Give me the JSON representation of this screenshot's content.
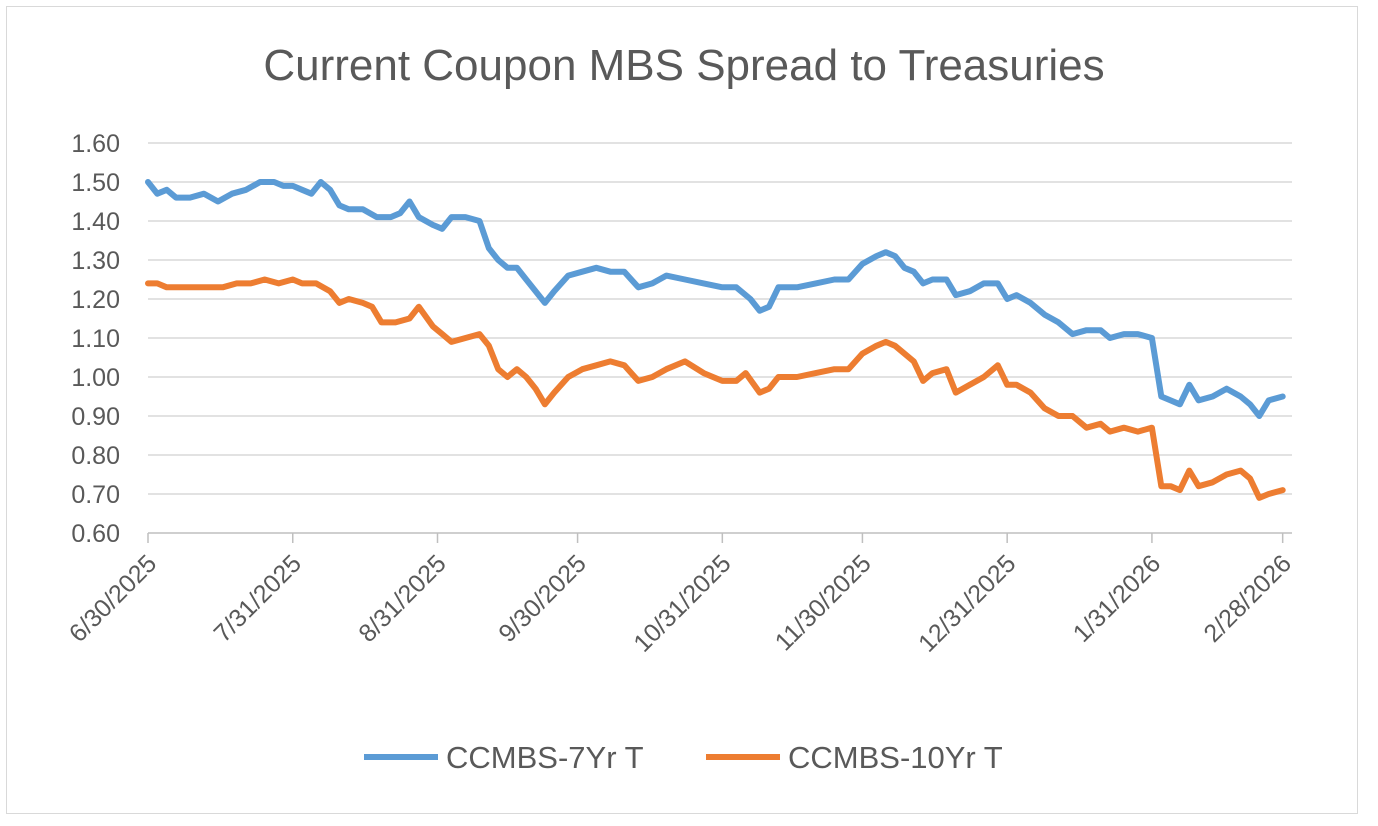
{
  "chart_data": {
    "type": "line",
    "title": "Current Coupon MBS Spread to Treasuries",
    "xlabel": "",
    "ylabel": "",
    "ylim": [
      0.6,
      1.6
    ],
    "y_ticks": [
      "0.60",
      "0.70",
      "0.80",
      "0.90",
      "1.00",
      "1.10",
      "1.20",
      "1.30",
      "1.40",
      "1.50",
      "1.60"
    ],
    "x_range": [
      "6/30/2025",
      "3/2/2026"
    ],
    "x_ticks": [
      "6/30/2025",
      "7/31/2025",
      "8/31/2025",
      "9/30/2025",
      "10/31/2025",
      "11/30/2025",
      "12/31/2025",
      "1/31/2026",
      "2/28/2026"
    ],
    "grid": "horizontal",
    "legend_position": "bottom",
    "series": [
      {
        "name": "CCMBS-7Yr T",
        "color": "#5b9bd5",
        "points": [
          [
            "6/30/2025",
            1.5
          ],
          [
            "7/2/2025",
            1.47
          ],
          [
            "7/4/2025",
            1.48
          ],
          [
            "7/6/2025",
            1.46
          ],
          [
            "7/9/2025",
            1.46
          ],
          [
            "7/12/2025",
            1.47
          ],
          [
            "7/15/2025",
            1.45
          ],
          [
            "7/18/2025",
            1.47
          ],
          [
            "7/21/2025",
            1.48
          ],
          [
            "7/24/2025",
            1.5
          ],
          [
            "7/27/2025",
            1.5
          ],
          [
            "7/29/2025",
            1.49
          ],
          [
            "7/31/2025",
            1.49
          ],
          [
            "8/2/2025",
            1.48
          ],
          [
            "8/4/2025",
            1.47
          ],
          [
            "8/6/2025",
            1.5
          ],
          [
            "8/8/2025",
            1.48
          ],
          [
            "8/10/2025",
            1.44
          ],
          [
            "8/12/2025",
            1.43
          ],
          [
            "8/15/2025",
            1.43
          ],
          [
            "8/18/2025",
            1.41
          ],
          [
            "8/21/2025",
            1.41
          ],
          [
            "8/23/2025",
            1.42
          ],
          [
            "8/25/2025",
            1.45
          ],
          [
            "8/27/2025",
            1.41
          ],
          [
            "8/30/2025",
            1.39
          ],
          [
            "9/1/2025",
            1.38
          ],
          [
            "9/3/2025",
            1.41
          ],
          [
            "9/6/2025",
            1.41
          ],
          [
            "9/9/2025",
            1.4
          ],
          [
            "9/11/2025",
            1.33
          ],
          [
            "9/13/2025",
            1.3
          ],
          [
            "9/15/2025",
            1.28
          ],
          [
            "9/17/2025",
            1.28
          ],
          [
            "9/19/2025",
            1.25
          ],
          [
            "9/21/2025",
            1.22
          ],
          [
            "9/23/2025",
            1.19
          ],
          [
            "9/25/2025",
            1.22
          ],
          [
            "9/28/2025",
            1.26
          ],
          [
            "10/1/2025",
            1.27
          ],
          [
            "10/4/2025",
            1.28
          ],
          [
            "10/7/2025",
            1.27
          ],
          [
            "10/10/2025",
            1.27
          ],
          [
            "10/13/2025",
            1.23
          ],
          [
            "10/16/2025",
            1.24
          ],
          [
            "10/19/2025",
            1.26
          ],
          [
            "10/23/2025",
            1.25
          ],
          [
            "10/27/2025",
            1.24
          ],
          [
            "10/31/2025",
            1.23
          ],
          [
            "11/3/2025",
            1.23
          ],
          [
            "11/6/2025",
            1.2
          ],
          [
            "11/8/2025",
            1.17
          ],
          [
            "11/10/2025",
            1.18
          ],
          [
            "11/12/2025",
            1.23
          ],
          [
            "11/16/2025",
            1.23
          ],
          [
            "11/20/2025",
            1.24
          ],
          [
            "11/24/2025",
            1.25
          ],
          [
            "11/27/2025",
            1.25
          ],
          [
            "11/30/2025",
            1.29
          ],
          [
            "12/3/2025",
            1.31
          ],
          [
            "12/5/2025",
            1.32
          ],
          [
            "12/7/2025",
            1.31
          ],
          [
            "12/9/2025",
            1.28
          ],
          [
            "12/11/2025",
            1.27
          ],
          [
            "12/13/2025",
            1.24
          ],
          [
            "12/15/2025",
            1.25
          ],
          [
            "12/18/2025",
            1.25
          ],
          [
            "12/20/2025",
            1.21
          ],
          [
            "12/23/2025",
            1.22
          ],
          [
            "12/26/2025",
            1.24
          ],
          [
            "12/29/2025",
            1.24
          ],
          [
            "12/31/2025",
            1.2
          ],
          [
            "1/2/2026",
            1.21
          ],
          [
            "1/5/2026",
            1.19
          ],
          [
            "1/8/2026",
            1.16
          ],
          [
            "1/11/2026",
            1.14
          ],
          [
            "1/14/2026",
            1.11
          ],
          [
            "1/17/2026",
            1.12
          ],
          [
            "1/20/2026",
            1.12
          ],
          [
            "1/22/2026",
            1.1
          ],
          [
            "1/25/2026",
            1.11
          ],
          [
            "1/28/2026",
            1.11
          ],
          [
            "1/31/2026",
            1.1
          ],
          [
            "2/2/2026",
            0.95
          ],
          [
            "2/4/2026",
            0.94
          ],
          [
            "2/6/2026",
            0.93
          ],
          [
            "2/8/2026",
            0.98
          ],
          [
            "2/10/2026",
            0.94
          ],
          [
            "2/13/2026",
            0.95
          ],
          [
            "2/16/2026",
            0.97
          ],
          [
            "2/19/2026",
            0.95
          ],
          [
            "2/21/2026",
            0.93
          ],
          [
            "2/23/2026",
            0.9
          ],
          [
            "2/25/2026",
            0.94
          ],
          [
            "2/28/2026",
            0.95
          ]
        ]
      },
      {
        "name": "CCMBS-10Yr T",
        "color": "#ed7d31",
        "points": [
          [
            "6/30/2025",
            1.24
          ],
          [
            "7/2/2025",
            1.24
          ],
          [
            "7/4/2025",
            1.23
          ],
          [
            "7/8/2025",
            1.23
          ],
          [
            "7/12/2025",
            1.23
          ],
          [
            "7/16/2025",
            1.23
          ],
          [
            "7/19/2025",
            1.24
          ],
          [
            "7/22/2025",
            1.24
          ],
          [
            "7/25/2025",
            1.25
          ],
          [
            "7/28/2025",
            1.24
          ],
          [
            "7/31/2025",
            1.25
          ],
          [
            "8/2/2025",
            1.24
          ],
          [
            "8/5/2025",
            1.24
          ],
          [
            "8/8/2025",
            1.22
          ],
          [
            "8/10/2025",
            1.19
          ],
          [
            "8/12/2025",
            1.2
          ],
          [
            "8/15/2025",
            1.19
          ],
          [
            "8/17/2025",
            1.18
          ],
          [
            "8/19/2025",
            1.14
          ],
          [
            "8/22/2025",
            1.14
          ],
          [
            "8/25/2025",
            1.15
          ],
          [
            "8/27/2025",
            1.18
          ],
          [
            "8/30/2025",
            1.13
          ],
          [
            "9/1/2025",
            1.11
          ],
          [
            "9/3/2025",
            1.09
          ],
          [
            "9/6/2025",
            1.1
          ],
          [
            "9/9/2025",
            1.11
          ],
          [
            "9/11/2025",
            1.08
          ],
          [
            "9/13/2025",
            1.02
          ],
          [
            "9/15/2025",
            1.0
          ],
          [
            "9/17/2025",
            1.02
          ],
          [
            "9/19/2025",
            1.0
          ],
          [
            "9/21/2025",
            0.97
          ],
          [
            "9/23/2025",
            0.93
          ],
          [
            "9/25/2025",
            0.96
          ],
          [
            "9/28/2025",
            1.0
          ],
          [
            "10/1/2025",
            1.02
          ],
          [
            "10/4/2025",
            1.03
          ],
          [
            "10/7/2025",
            1.04
          ],
          [
            "10/10/2025",
            1.03
          ],
          [
            "10/13/2025",
            0.99
          ],
          [
            "10/16/2025",
            1.0
          ],
          [
            "10/19/2025",
            1.02
          ],
          [
            "10/23/2025",
            1.04
          ],
          [
            "10/27/2025",
            1.01
          ],
          [
            "10/31/2025",
            0.99
          ],
          [
            "11/3/2025",
            0.99
          ],
          [
            "11/5/2025",
            1.01
          ],
          [
            "11/8/2025",
            0.96
          ],
          [
            "11/10/2025",
            0.97
          ],
          [
            "11/12/2025",
            1.0
          ],
          [
            "11/16/2025",
            1.0
          ],
          [
            "11/20/2025",
            1.01
          ],
          [
            "11/24/2025",
            1.02
          ],
          [
            "11/27/2025",
            1.02
          ],
          [
            "11/30/2025",
            1.06
          ],
          [
            "12/3/2025",
            1.08
          ],
          [
            "12/5/2025",
            1.09
          ],
          [
            "12/7/2025",
            1.08
          ],
          [
            "12/9/2025",
            1.06
          ],
          [
            "12/11/2025",
            1.04
          ],
          [
            "12/13/2025",
            0.99
          ],
          [
            "12/15/2025",
            1.01
          ],
          [
            "12/18/2025",
            1.02
          ],
          [
            "12/20/2025",
            0.96
          ],
          [
            "12/23/2025",
            0.98
          ],
          [
            "12/26/2025",
            1.0
          ],
          [
            "12/29/2025",
            1.03
          ],
          [
            "12/31/2025",
            0.98
          ],
          [
            "1/2/2026",
            0.98
          ],
          [
            "1/5/2026",
            0.96
          ],
          [
            "1/8/2026",
            0.92
          ],
          [
            "1/11/2026",
            0.9
          ],
          [
            "1/14/2026",
            0.9
          ],
          [
            "1/17/2026",
            0.87
          ],
          [
            "1/20/2026",
            0.88
          ],
          [
            "1/22/2026",
            0.86
          ],
          [
            "1/25/2026",
            0.87
          ],
          [
            "1/28/2026",
            0.86
          ],
          [
            "1/31/2026",
            0.87
          ],
          [
            "2/2/2026",
            0.72
          ],
          [
            "2/4/2026",
            0.72
          ],
          [
            "2/6/2026",
            0.71
          ],
          [
            "2/8/2026",
            0.76
          ],
          [
            "2/10/2026",
            0.72
          ],
          [
            "2/13/2026",
            0.73
          ],
          [
            "2/16/2026",
            0.75
          ],
          [
            "2/19/2026",
            0.76
          ],
          [
            "2/21/2026",
            0.74
          ],
          [
            "2/23/2026",
            0.69
          ],
          [
            "2/25/2026",
            0.7
          ],
          [
            "2/28/2026",
            0.71
          ]
        ]
      }
    ]
  }
}
